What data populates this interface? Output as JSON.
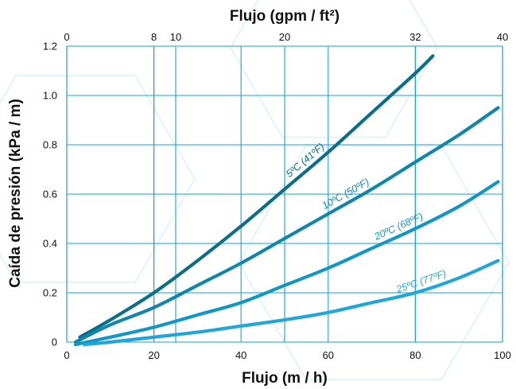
{
  "chart_data": {
    "type": "line",
    "xlabel": "Flujo (m / h)",
    "ylabel": "Caída de presión (kPa / m)",
    "x2label": "Flujo (gpm / ft²)",
    "xlim": [
      0,
      100
    ],
    "ylim": [
      0,
      1.2
    ],
    "x2lim": [
      0,
      40
    ],
    "x_ticks": [
      0,
      20,
      40,
      60,
      80,
      100
    ],
    "x_tick_labels": [
      "0",
      "20",
      "40",
      "60",
      "80",
      "100"
    ],
    "x2_ticks": [
      0,
      8,
      10,
      20,
      32,
      40
    ],
    "x2_tick_labels": [
      "0",
      "8",
      "10",
      "20",
      "32",
      "40"
    ],
    "y_ticks": [
      0,
      0.2,
      0.4,
      0.6,
      0.8,
      1.0,
      1.2
    ],
    "y_tick_labels": [
      "0",
      "0.2",
      "0.4",
      "0.6",
      "0.8",
      "1.0",
      "1.2"
    ],
    "grid": true,
    "series": [
      {
        "name": "5ºC (41ºF)",
        "color": "#0b6f8a",
        "x": [
          3,
          10,
          20,
          30,
          40,
          50,
          60,
          70,
          80,
          84
        ],
        "y": [
          0.02,
          0.09,
          0.2,
          0.33,
          0.47,
          0.62,
          0.77,
          0.93,
          1.09,
          1.16
        ]
      },
      {
        "name": "10ºC (50ºF)",
        "color": "#0f86aa",
        "x": [
          2,
          10,
          20,
          30,
          40,
          50,
          60,
          70,
          80,
          90,
          99
        ],
        "y": [
          0.0,
          0.07,
          0.14,
          0.23,
          0.32,
          0.42,
          0.52,
          0.62,
          0.73,
          0.84,
          0.95
        ]
      },
      {
        "name": "20ºC (68ºF)",
        "color": "#1496c4",
        "x": [
          2,
          10,
          20,
          30,
          40,
          50,
          60,
          70,
          80,
          90,
          99
        ],
        "y": [
          -0.01,
          0.02,
          0.06,
          0.11,
          0.16,
          0.23,
          0.3,
          0.38,
          0.46,
          0.55,
          0.65
        ]
      },
      {
        "name": "25ºC (77ºF)",
        "color": "#22a6d8",
        "x": [
          4,
          10,
          20,
          30,
          40,
          50,
          60,
          70,
          80,
          90,
          99
        ],
        "y": [
          -0.01,
          0.0,
          0.02,
          0.04,
          0.065,
          0.09,
          0.12,
          0.16,
          0.2,
          0.26,
          0.33
        ]
      }
    ]
  }
}
